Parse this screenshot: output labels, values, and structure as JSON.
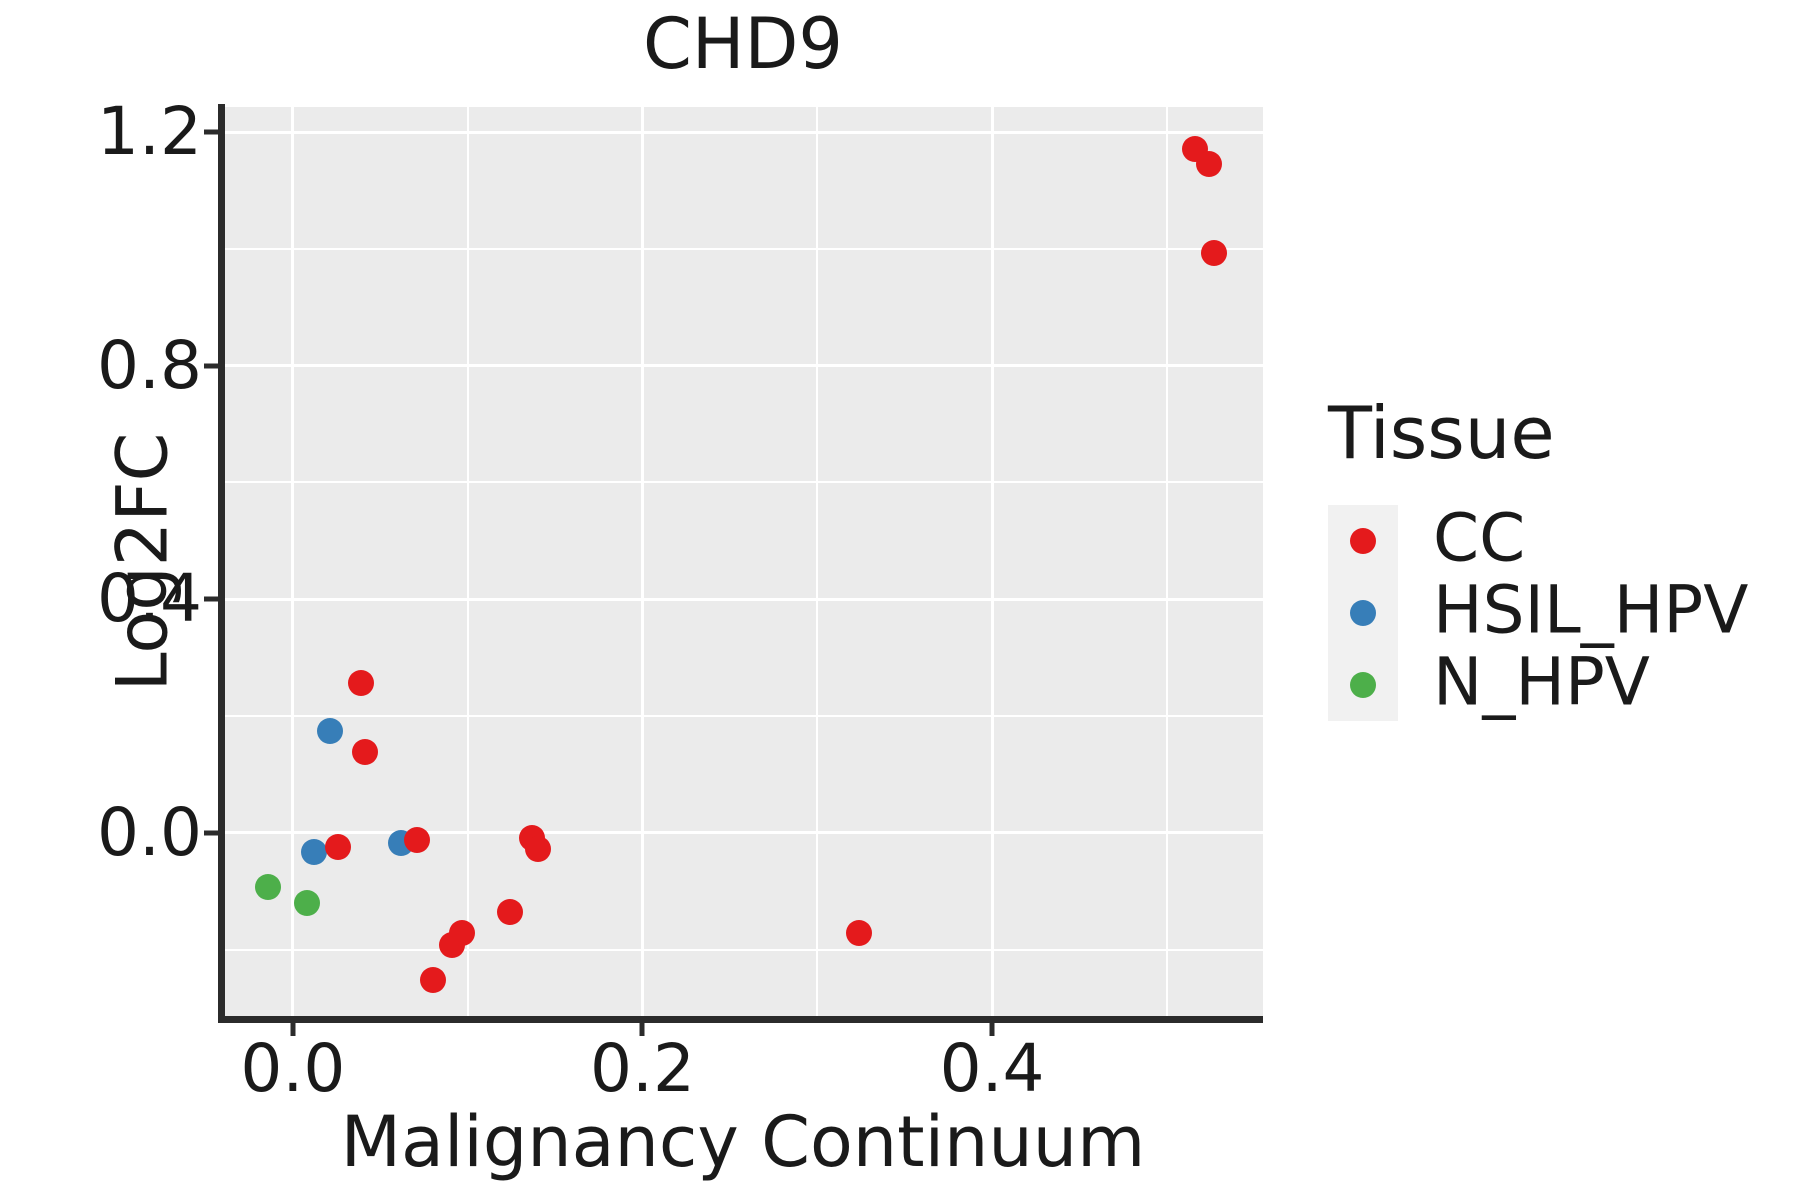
{
  "figure": {
    "background": "#ffffff",
    "panel_background": "#EBEBEB",
    "gridline_color": "#ffffff",
    "axis_color": "#2b2b2b",
    "text_color": "#1a1a1a",
    "legend_key_background": "#F1F1F1"
  },
  "chart_data": {
    "type": "scatter",
    "title": "CHD9",
    "xlabel": "Malignancy Continuum",
    "ylabel": "Log2FC",
    "xlim": [
      -0.04,
      0.555
    ],
    "ylim": [
      -0.317,
      1.243
    ],
    "x_major_ticks": [
      0.0,
      0.2,
      0.4
    ],
    "x_tick_labels": [
      "0.0",
      "0.2",
      "0.4"
    ],
    "x_minor_ticks": [
      0.1,
      0.3,
      0.5
    ],
    "y_major_ticks": [
      0.0,
      0.4,
      0.8,
      1.2
    ],
    "y_tick_labels": [
      "0.0",
      "0.4",
      "0.8",
      "1.2"
    ],
    "y_minor_ticks": [
      -0.2,
      0.2,
      0.6,
      1.0
    ],
    "grid": "major and minor white gridlines on gray panel",
    "legend_position": "right",
    "legend_title": "Tissue",
    "marker_diameter_px": 26,
    "series": [
      {
        "name": "CC",
        "color": "#E41A1C",
        "points": [
          [
            0.516,
            1.171
          ],
          [
            0.524,
            1.145
          ],
          [
            0.527,
            0.993
          ],
          [
            0.039,
            0.257
          ],
          [
            0.041,
            0.139
          ],
          [
            0.026,
            -0.024
          ],
          [
            0.071,
            -0.012
          ],
          [
            0.137,
            -0.009
          ],
          [
            0.14,
            -0.027
          ],
          [
            0.091,
            -0.192
          ],
          [
            0.097,
            -0.171
          ],
          [
            0.08,
            -0.252
          ],
          [
            0.124,
            -0.135
          ],
          [
            0.324,
            -0.171
          ]
        ]
      },
      {
        "name": "HSIL_HPV",
        "color": "#377EB8",
        "points": [
          [
            0.021,
            0.175
          ],
          [
            0.012,
            -0.033
          ],
          [
            0.062,
            -0.017
          ]
        ]
      },
      {
        "name": "N_HPV",
        "color": "#4DAF4A",
        "points": [
          [
            -0.014,
            -0.092
          ],
          [
            0.008,
            -0.12
          ]
        ]
      }
    ]
  }
}
